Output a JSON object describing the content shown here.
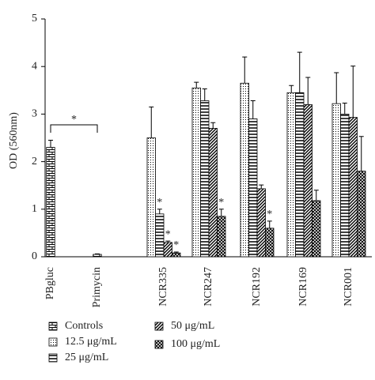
{
  "chart_data": {
    "type": "bar",
    "y_label": "OD (560nm)",
    "categories": [
      "PBgluc",
      "Primycin",
      "NCR335",
      "NCR247",
      "NCR192",
      "NCR169",
      "NCR001"
    ],
    "series": [
      {
        "name": "Controls",
        "color": "#000000",
        "pattern": "brick",
        "values": [
          2.3,
          0.05,
          null,
          null,
          null,
          null,
          null
        ],
        "errors": [
          0.15,
          0.01,
          null,
          null,
          null,
          null,
          null
        ]
      },
      {
        "name": "12.5 μg/mL",
        "color": "#000000",
        "pattern": "dots",
        "values": [
          null,
          null,
          2.5,
          3.55,
          3.65,
          3.45,
          3.22
        ],
        "errors": [
          null,
          null,
          0.65,
          0.12,
          0.55,
          0.15,
          0.65
        ]
      },
      {
        "name": "25 μg/mL",
        "color": "#000000",
        "pattern": "horizontal",
        "values": [
          null,
          null,
          0.9,
          3.28,
          2.9,
          3.45,
          3.0
        ],
        "errors": [
          null,
          null,
          0.1,
          0.25,
          0.38,
          0.85,
          0.23
        ]
      },
      {
        "name": "50 μg/mL",
        "color": "#000000",
        "pattern": "diagonal",
        "values": [
          null,
          null,
          0.3,
          2.7,
          1.43,
          3.2,
          2.93
        ],
        "errors": [
          null,
          null,
          0.03,
          0.12,
          0.08,
          0.57,
          1.08
        ]
      },
      {
        "name": "100 μg/mL",
        "color": "#000000",
        "pattern": "crosshatch",
        "values": [
          null,
          null,
          0.08,
          0.85,
          0.6,
          1.18,
          1.8
        ],
        "errors": [
          null,
          null,
          0.02,
          0.15,
          0.15,
          0.22,
          0.73
        ]
      }
    ],
    "annotations": [
      {
        "text": "*",
        "bracket": [
          "PBgluc",
          "Primycin"
        ]
      },
      {
        "text": "*",
        "category": "NCR335",
        "series": "25 μg/mL"
      },
      {
        "text": "*",
        "category": "NCR335",
        "series": "50 μg/mL"
      },
      {
        "text": "*",
        "category": "NCR335",
        "series": "100 μg/mL"
      },
      {
        "text": "*",
        "category": "NCR247",
        "series": "100 μg/mL"
      },
      {
        "text": "*",
        "category": "NCR192",
        "series": "100 μg/mL"
      }
    ],
    "ylim": [
      0,
      5
    ],
    "yticks": [
      0,
      1,
      2,
      3,
      4,
      5
    ],
    "grid": false
  }
}
